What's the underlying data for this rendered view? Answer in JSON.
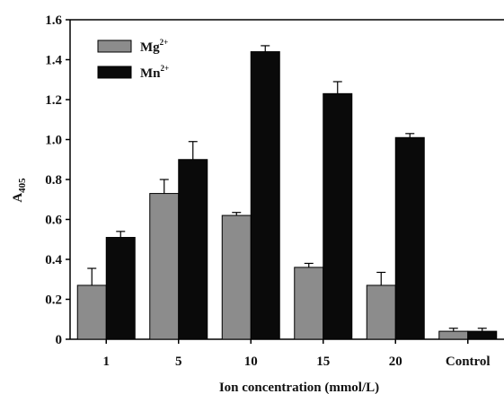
{
  "chart_data": {
    "type": "bar",
    "xlabel": "Ion concentration (mmol/L)",
    "ylabel": {
      "main": "A",
      "sub": "405"
    },
    "ylim": [
      0,
      1.6
    ],
    "yticks": [
      "0",
      "0.2",
      "0.4",
      "0.6",
      "0.8",
      "1.0",
      "1.2",
      "1.4",
      "1.6"
    ],
    "categories": [
      "1",
      "5",
      "10",
      "15",
      "20",
      "Control"
    ],
    "series": [
      {
        "name": "Mg",
        "sup": "2+",
        "color": "#8c8c8c",
        "values": [
          0.27,
          0.73,
          0.62,
          0.36,
          0.27,
          0.04
        ],
        "errors": [
          0.085,
          0.07,
          0.015,
          0.02,
          0.065,
          0.015
        ]
      },
      {
        "name": "Mn",
        "sup": "2+",
        "color": "#0a0a0a",
        "values": [
          0.51,
          0.9,
          1.44,
          1.23,
          1.01,
          0.04
        ],
        "errors": [
          0.03,
          0.09,
          0.03,
          0.06,
          0.02,
          0.015
        ]
      }
    ],
    "grid": false,
    "legend_position": "top-left"
  }
}
